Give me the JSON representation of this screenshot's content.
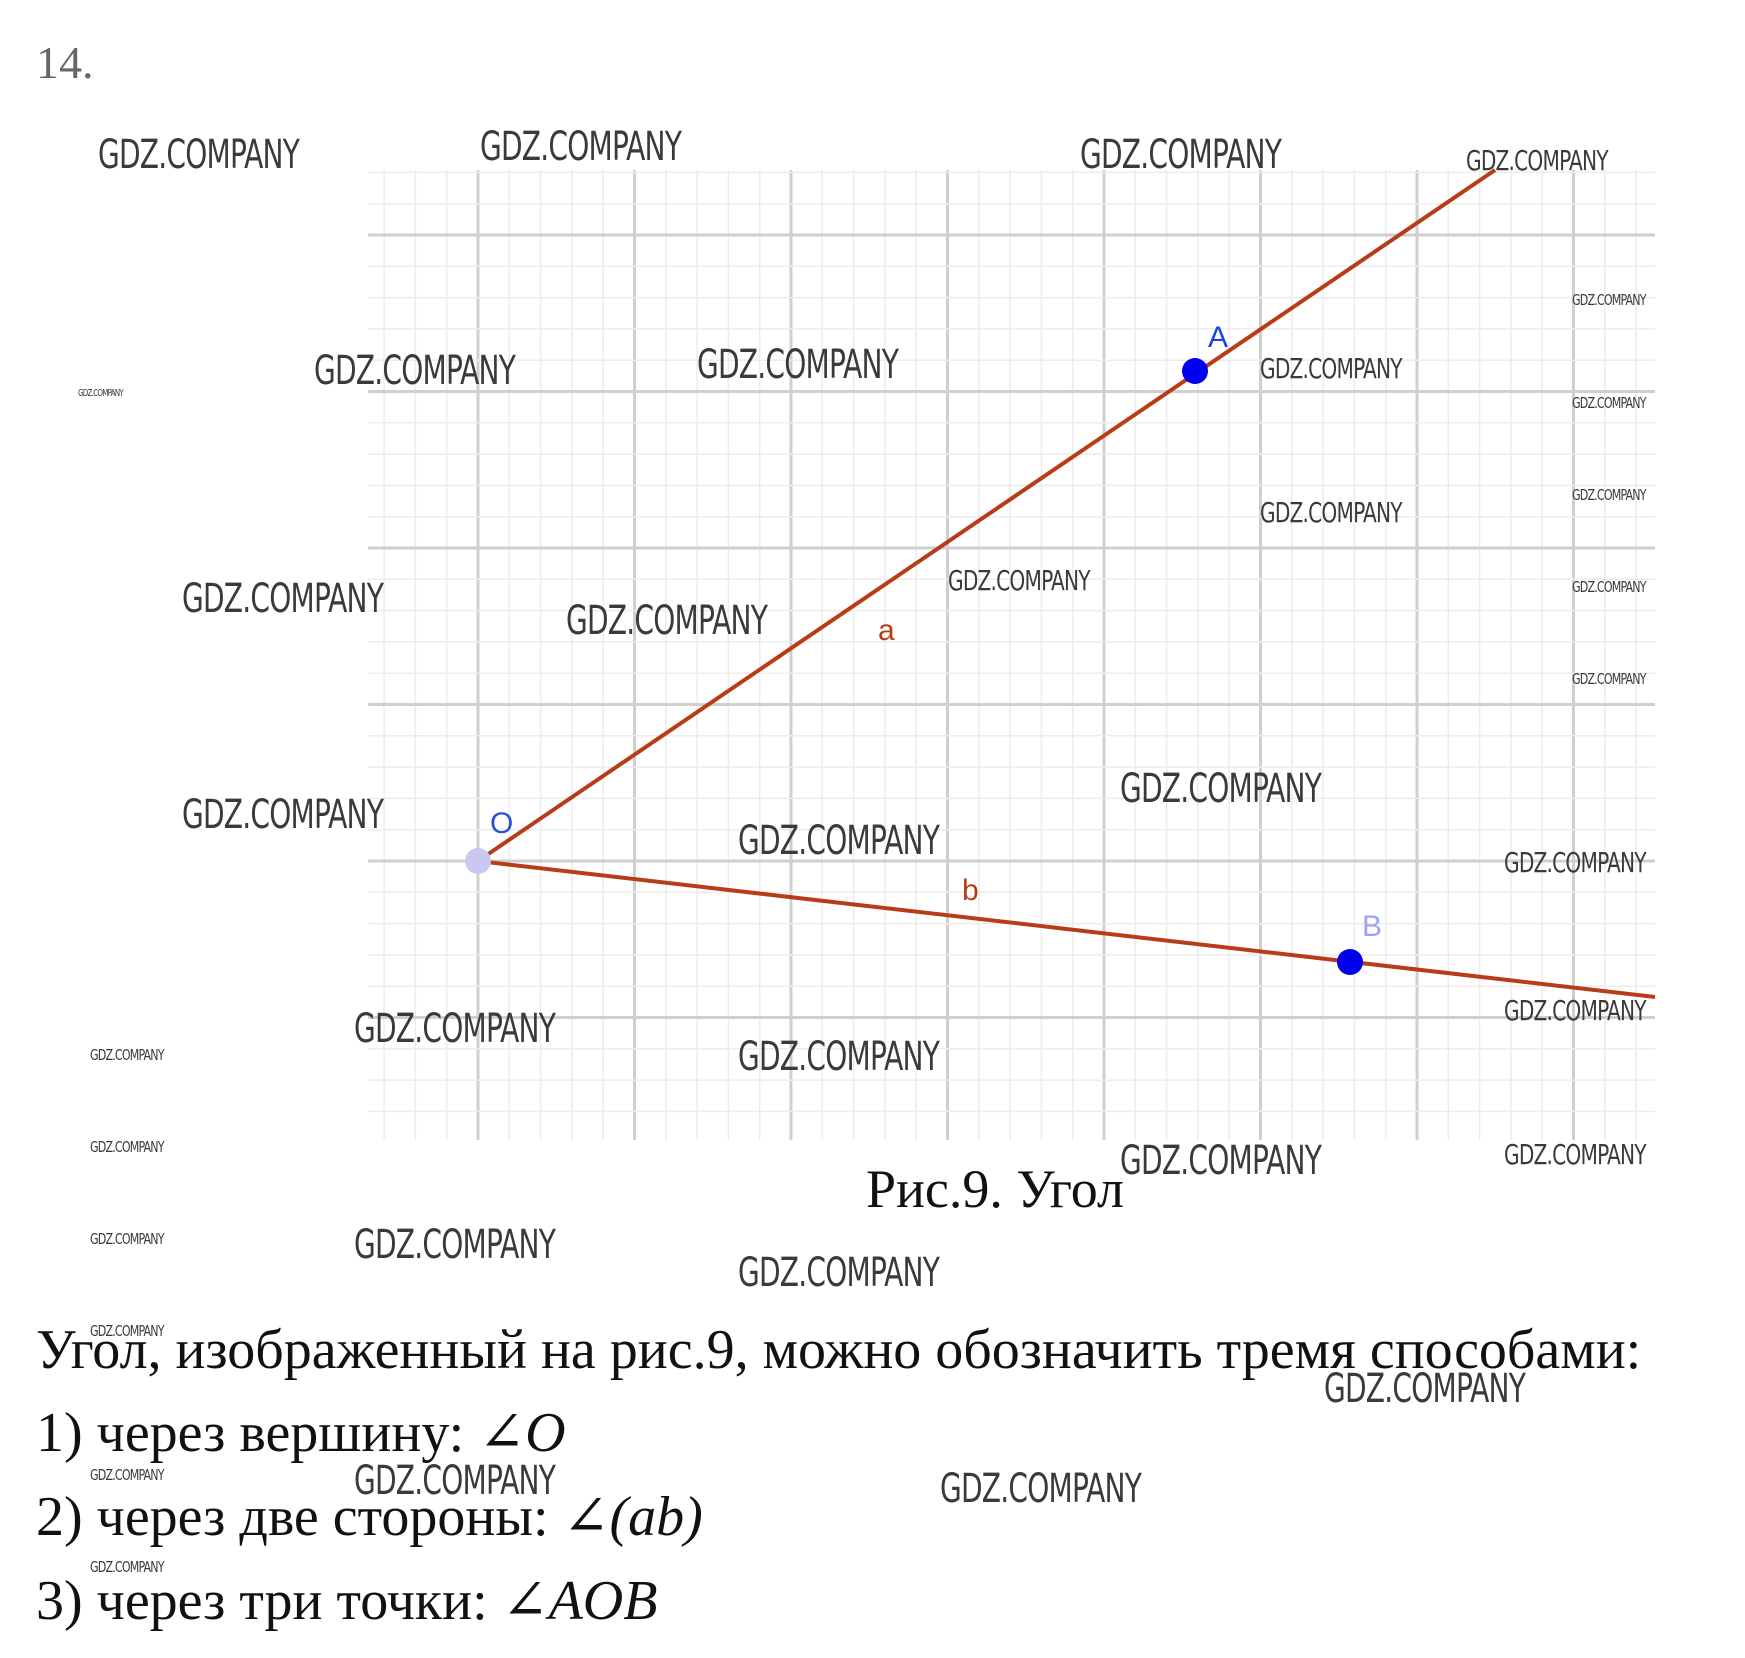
{
  "problem_number": "14.",
  "figure": {
    "points": [
      {
        "id": "O",
        "label": "O",
        "color": "#c8c8f0",
        "label_color": "#2b4fd8"
      },
      {
        "id": "A",
        "label": "A",
        "color": "#0000ee",
        "label_color": "#1f3fe0"
      },
      {
        "id": "B",
        "label": "B",
        "color": "#0000ee",
        "label_color": "#9aa6f0"
      }
    ],
    "rays": [
      {
        "id": "a",
        "label": "a",
        "from": "O",
        "through": "A"
      },
      {
        "id": "b",
        "label": "b",
        "from": "O",
        "through": "B"
      }
    ],
    "colors": {
      "ray": "#b83c17",
      "ray_label": "#b83c17",
      "grid_major": "#cfcfcf",
      "grid_minor": "#ececec"
    },
    "caption": "Рис.9. Угол"
  },
  "watermark": "GDZ.COMPANY",
  "text": {
    "intro": "Угол, изображенный на рис.9, можно обозначить тремя способами:",
    "way1_prefix": "1) через вершину: ",
    "way1_math": "∠O",
    "way2_prefix": "2) через две стороны: ",
    "way2_math": "∠(ab)",
    "way3_prefix": "3) через три точки: ",
    "way3_math": "∠AOB"
  }
}
